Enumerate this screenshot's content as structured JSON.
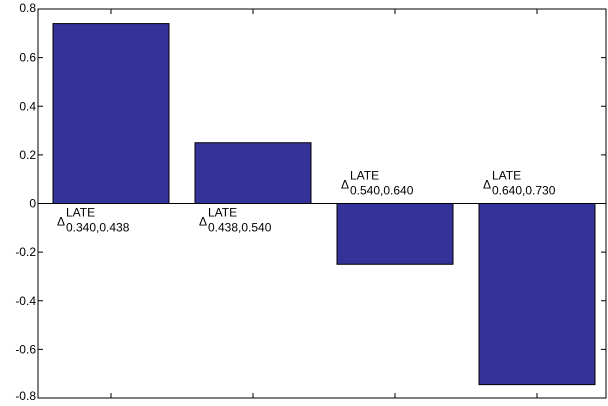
{
  "chart_data": {
    "type": "bar",
    "title": "",
    "xlabel": "",
    "ylabel": "",
    "ylim": [
      -0.8,
      0.8
    ],
    "yticks": [
      {
        "value": 0.8,
        "label": "0.8"
      },
      {
        "value": 0.6,
        "label": "0.6"
      },
      {
        "value": 0.4,
        "label": "0.4"
      },
      {
        "value": 0.2,
        "label": "0.2"
      },
      {
        "value": 0,
        "label": "0"
      },
      {
        "value": -0.2,
        "label": "-0.2"
      },
      {
        "value": -0.4,
        "label": "-0.4"
      },
      {
        "value": -0.6,
        "label": "-0.6"
      },
      {
        "value": -0.8,
        "label": "-0.8"
      }
    ],
    "grid": false,
    "legend": "none",
    "bar_color": "#333399",
    "bars": [
      {
        "symbol": "Δ",
        "sup": "LATE",
        "sub": "0.340,0.438",
        "value": 0.74
      },
      {
        "symbol": "Δ",
        "sup": "LATE",
        "sub": "0.438,0.540",
        "value": 0.25
      },
      {
        "symbol": "Δ",
        "sup": "LATE",
        "sub": "0.540,0.640",
        "value": -0.25
      },
      {
        "symbol": "Δ",
        "sup": "LATE",
        "sub": "0.640,0.730",
        "value": -0.745
      }
    ]
  }
}
